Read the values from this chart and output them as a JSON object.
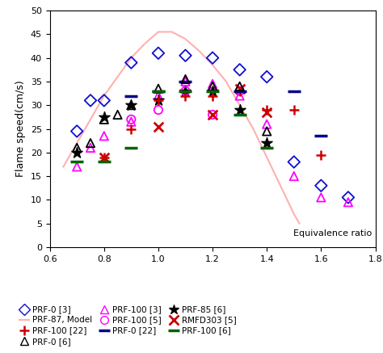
{
  "xlim": [
    0.6,
    1.8
  ],
  "ylim": [
    0,
    50
  ],
  "xticks": [
    0.6,
    0.8,
    1.0,
    1.2,
    1.4,
    1.6,
    1.8
  ],
  "yticks": [
    0,
    5,
    10,
    15,
    20,
    25,
    30,
    35,
    40,
    45,
    50
  ],
  "xlabel": "Equivalence ratio",
  "ylabel": "Flame speed(cm/s)",
  "model_x": [
    0.65,
    0.68,
    0.72,
    0.76,
    0.8,
    0.85,
    0.9,
    0.95,
    1.0,
    1.05,
    1.1,
    1.15,
    1.2,
    1.25,
    1.3,
    1.35,
    1.4,
    1.45,
    1.5,
    1.52
  ],
  "model_y": [
    17,
    20,
    24,
    28,
    32,
    36,
    40,
    43,
    45.5,
    45.5,
    44,
    41.5,
    38.5,
    35,
    30,
    25,
    19,
    13,
    7,
    5
  ],
  "prf0_3_x": [
    0.7,
    0.75,
    0.8,
    0.9,
    1.0,
    1.1,
    1.2,
    1.3,
    1.4,
    1.5,
    1.6,
    1.7
  ],
  "prf0_3_y": [
    24.5,
    31,
    31,
    39,
    41,
    40.5,
    40,
    37.5,
    36,
    18,
    13,
    10.5
  ],
  "prf100_3_x": [
    0.7,
    0.75,
    0.8,
    0.9,
    1.0,
    1.1,
    1.2,
    1.3,
    1.4,
    1.5,
    1.6,
    1.7
  ],
  "prf100_3_y": [
    17,
    21,
    23.5,
    26.5,
    32,
    35,
    34.5,
    32,
    26,
    15,
    10.5,
    9.5
  ],
  "prf85_6_x": [
    0.7,
    0.8,
    0.9,
    1.0,
    1.1,
    1.2,
    1.3,
    1.4
  ],
  "prf85_6_y": [
    20,
    27.5,
    30,
    31,
    33,
    33,
    29,
    22
  ],
  "prf100_5_x": [
    0.9,
    1.0,
    1.1,
    1.2,
    1.3
  ],
  "prf100_5_y": [
    27,
    29,
    33,
    28,
    33
  ],
  "rmfd303_5_x": [
    0.8,
    1.0,
    1.2,
    1.3,
    1.4
  ],
  "rmfd303_5_y": [
    19,
    25.5,
    28,
    33.5,
    28.5
  ],
  "prf100_22_x": [
    0.8,
    0.9,
    1.0,
    1.1,
    1.2,
    1.3,
    1.4,
    1.5,
    1.6
  ],
  "prf100_22_y": [
    19,
    25,
    31,
    32,
    32,
    33,
    29,
    29,
    19.5
  ],
  "prf0_22_x": [
    0.9,
    1.0,
    1.1,
    1.3,
    1.5,
    1.6
  ],
  "prf0_22_y": [
    32,
    33,
    35,
    33,
    33,
    23.5
  ],
  "prf0_6_x": [
    0.7,
    0.75,
    0.8,
    0.85,
    0.9,
    1.0,
    1.1,
    1.2,
    1.3,
    1.4
  ],
  "prf0_6_y": [
    21,
    22,
    27,
    28,
    30,
    33.5,
    35.5,
    34,
    34,
    24.5
  ],
  "prf100_6_x": [
    0.7,
    0.8,
    0.9,
    1.0,
    1.1,
    1.2,
    1.3,
    1.4
  ],
  "prf100_6_y": [
    18,
    18,
    21,
    33,
    33,
    33,
    28,
    21
  ],
  "color_blue": "#1010CC",
  "color_magenta": "#FF00FF",
  "color_black": "#000000",
  "color_model": "#FFB0B0",
  "color_red": "#CC0000",
  "color_blue_dark": "#00008B",
  "color_green": "#006400"
}
